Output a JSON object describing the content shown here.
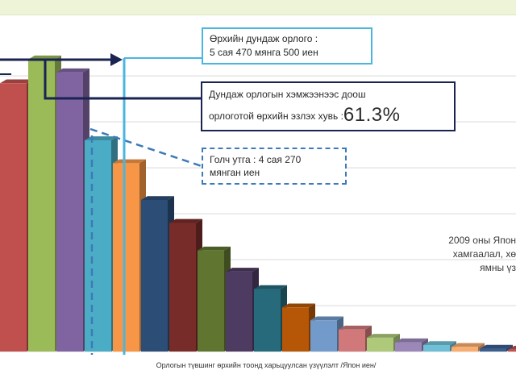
{
  "chart_data": {
    "type": "bar",
    "values": [
      292,
      318,
      304,
      230,
      205,
      165,
      140,
      110,
      87,
      68,
      48,
      34,
      24,
      15,
      10,
      7,
      5,
      3,
      2
    ],
    "colors": [
      "#c0504d",
      "#9bbb59",
      "#8064a2",
      "#4bacc6",
      "#f79646",
      "#2c4d75",
      "#772c2a",
      "#5f7530",
      "#4d3b62",
      "#276a7c",
      "#b65708",
      "#729aca",
      "#d0787a",
      "#aec97a",
      "#9b88b8",
      "#6fc0d6",
      "#f9ae6f",
      "#3b5e8f",
      "#c0504d"
    ],
    "xlabel": "Орлогын түвшинг өрхийн тоонд харьцуулсан үзүүлэлт /Япон иен/",
    "grid": true,
    "ylim": [
      0,
      330
    ]
  },
  "callouts": {
    "average_line1": "Өрхийн дундаж орлого :",
    "average_line2": "5 сая 470 мянга 500 иен",
    "below_line1": "Дундаж орлогын хэмжээнээс доош",
    "below_line2": "орлоготой өрхийн эзлэх хувь :",
    "below_pct": "61.3%",
    "median_line1": "Голч утга : 4 сая 270",
    "median_line2": "мянган иен"
  },
  "side_note": {
    "line1": "2009 оны Япон",
    "line2": "хамгаалал, хө",
    "line3": "ямны үз"
  },
  "colors": {
    "average": "#4ab6e0",
    "below": "#1a2352",
    "median": "#3d7ab8",
    "top_band": "#eef4d8"
  }
}
